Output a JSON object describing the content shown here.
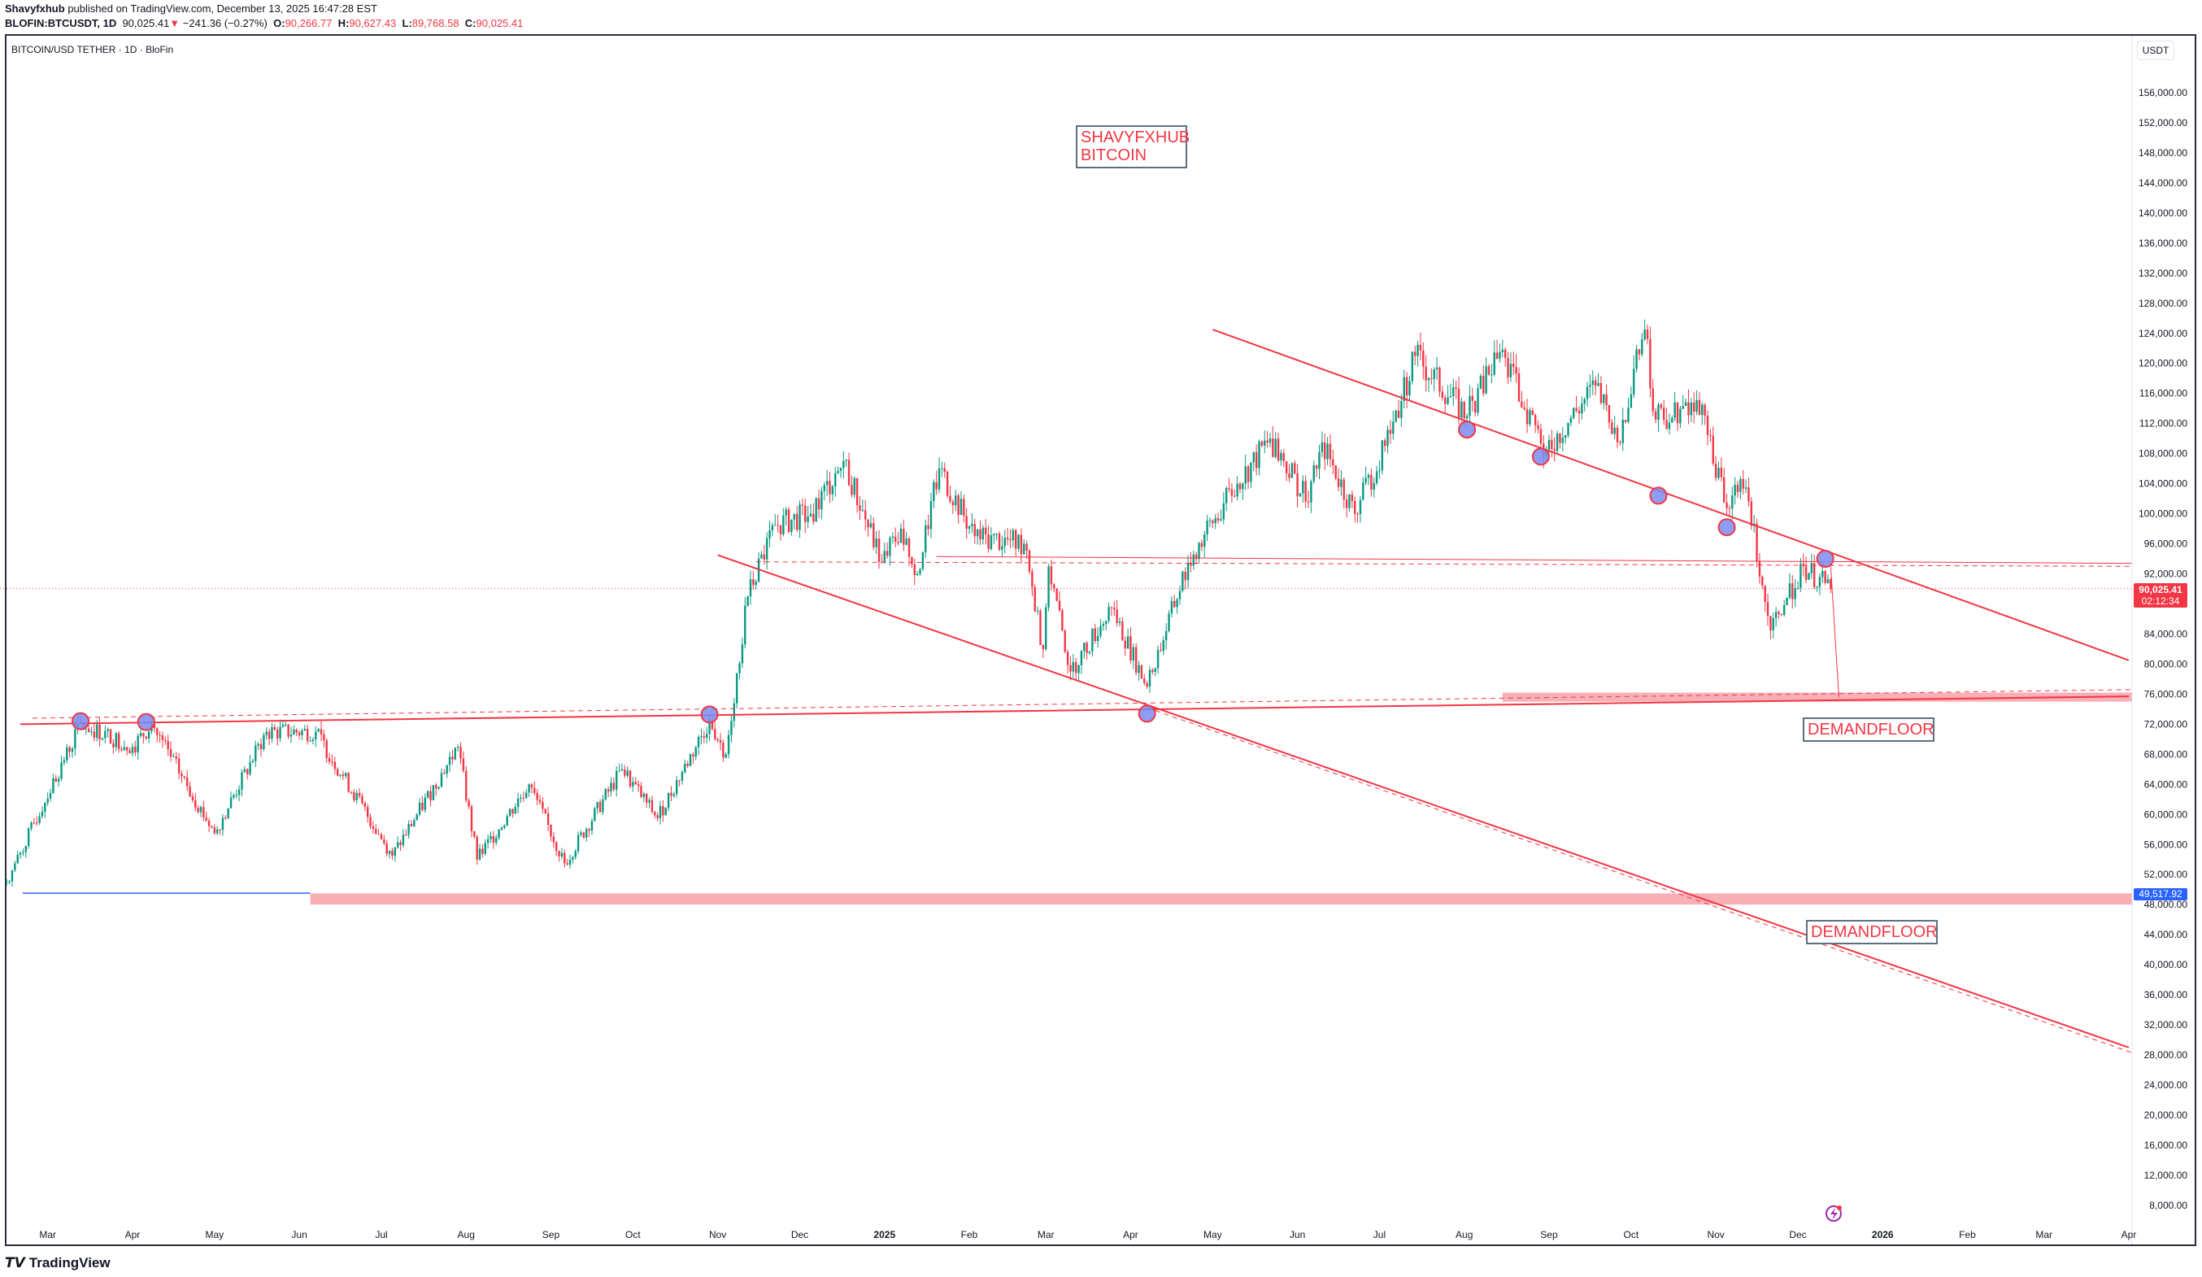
{
  "header": {
    "author": "Shavyfxhub",
    "published": "published on TradingView.com, December 13, 2025 16:47:28 EST",
    "symbol": "BLOFIN:BTCUSDT, 1D",
    "last": "90,025.41",
    "change": "−241.36 (−0.27%)",
    "o_label": "O:",
    "o": "90,266.77",
    "h_label": "H:",
    "h": "90,627.43",
    "l_label": "L:",
    "l": "89,768.58",
    "c_label": "C:",
    "c": "90,025.41"
  },
  "chart_title": "BITCOIN/USD TETHER · 1D · BloFin",
  "currency": "USDT",
  "annotations": {
    "main_line1": "SHAVYFXHUB",
    "main_line2": "BITCOIN",
    "demand1": "DEMANDFLOOR",
    "demand2": "DEMANDFLOOR"
  },
  "price_label": {
    "value": "90,025.41",
    "countdown": "02:12:34"
  },
  "blue_label": "49,517.92",
  "brand": "TradingView",
  "colors": {
    "up": "#089981",
    "down": "#f23645",
    "line": "#f23645",
    "zone": "#f7a1a9",
    "blue": "#2962ff"
  },
  "chart_data": {
    "type": "candlestick",
    "title": "BITCOIN/USD TETHER · 1D · BloFin",
    "ylabel": "USDT",
    "ylim": [
      6000,
      160000
    ],
    "y_ticks": [
      "156,000.00",
      "152,000.00",
      "148,000.00",
      "144,000.00",
      "140,000.00",
      "136,000.00",
      "132,000.00",
      "128,000.00",
      "124,000.00",
      "120,000.00",
      "116,000.00",
      "112,000.00",
      "108,000.00",
      "104,000.00",
      "100,000.00",
      "96,000.00",
      "92,000.00",
      "84,000.00",
      "80,000.00",
      "76,000.00",
      "72,000.00",
      "68,000.00",
      "64,000.00",
      "60,000.00",
      "56,000.00",
      "52,000.00",
      "48,000.00",
      "44,000.00",
      "40,000.00",
      "36,000.00",
      "32,000.00",
      "28,000.00",
      "24,000.00",
      "20,000.00",
      "16,000.00",
      "12,000.00",
      "8,000.00"
    ],
    "x_ticks": [
      "Mar",
      "Apr",
      "May",
      "Jun",
      "Jul",
      "Aug",
      "Sep",
      "Oct",
      "Nov",
      "Dec",
      "2025",
      "Feb",
      "Mar",
      "Apr",
      "May",
      "Jun",
      "Jul",
      "Aug",
      "Sep",
      "Oct",
      "Nov",
      "Dec",
      "2026",
      "Feb",
      "Mar",
      "Apr"
    ],
    "keypoints_close": [
      [
        "2024-02-15",
        51000
      ],
      [
        "2024-03-13",
        72000
      ],
      [
        "2024-04-01",
        69000
      ],
      [
        "2024-04-08",
        72000
      ],
      [
        "2024-05-01",
        57500
      ],
      [
        "2024-05-20",
        71000
      ],
      [
        "2024-06-07",
        71000
      ],
      [
        "2024-07-05",
        54500
      ],
      [
        "2024-07-29",
        69000
      ],
      [
        "2024-08-05",
        54000
      ],
      [
        "2024-08-24",
        64000
      ],
      [
        "2024-09-06",
        53500
      ],
      [
        "2024-09-27",
        66000
      ],
      [
        "2024-10-10",
        59500
      ],
      [
        "2024-10-29",
        72500
      ],
      [
        "2024-11-04",
        68000
      ],
      [
        "2024-11-12",
        89000
      ],
      [
        "2024-11-22",
        98500
      ],
      [
        "2024-12-05",
        100000
      ],
      [
        "2024-12-17",
        107000
      ],
      [
        "2024-12-31",
        93500
      ],
      [
        "2025-01-07",
        98000
      ],
      [
        "2025-01-13",
        92000
      ],
      [
        "2025-01-21",
        106000
      ],
      [
        "2025-02-03",
        97000
      ],
      [
        "2025-02-21",
        96000
      ],
      [
        "2025-02-28",
        82000
      ],
      [
        "2025-03-02",
        93000
      ],
      [
        "2025-03-10",
        79000
      ],
      [
        "2025-03-25",
        87500
      ],
      [
        "2025-04-07",
        77000
      ],
      [
        "2025-04-22",
        93500
      ],
      [
        "2025-05-10",
        104000
      ],
      [
        "2025-05-22",
        110000
      ],
      [
        "2025-06-05",
        101500
      ],
      [
        "2025-06-10",
        109500
      ],
      [
        "2025-06-22",
        100000
      ],
      [
        "2025-07-03",
        109000
      ],
      [
        "2025-07-14",
        121000
      ],
      [
        "2025-08-02",
        113000
      ],
      [
        "2025-08-14",
        121500
      ],
      [
        "2025-08-31",
        108500
      ],
      [
        "2025-09-18",
        117000
      ],
      [
        "2025-09-26",
        109500
      ],
      [
        "2025-10-06",
        124500
      ],
      [
        "2025-10-10",
        112500
      ],
      [
        "2025-10-27",
        114500
      ],
      [
        "2025-11-04",
        101500
      ],
      [
        "2025-11-12",
        103500
      ],
      [
        "2025-11-21",
        84500
      ],
      [
        "2025-12-03",
        93000
      ],
      [
        "2025-12-13",
        90025.41
      ]
    ],
    "trendlines": [
      {
        "name": "support-line",
        "from": [
          "2024-02-20",
          72000
        ],
        "to": [
          "2026-04-01",
          75700
        ]
      },
      {
        "name": "falling-line",
        "from": [
          "2024-11-01",
          94500
        ],
        "to": [
          "2026-04-01",
          29000
        ]
      },
      {
        "name": "resistance-line",
        "from": [
          "2025-05-01",
          124500
        ],
        "to": [
          "2026-04-01",
          80500
        ]
      }
    ],
    "zones": [
      {
        "name": "demand-zone-upper",
        "from": "2025-08-15",
        "to": "2026-04-01",
        "low": 75000,
        "high": 76200
      },
      {
        "name": "demand-zone-lower",
        "from": "2024-06-05",
        "to": "2026-04-01",
        "low": 48000,
        "high": 49500
      }
    ],
    "touch_points": [
      [
        "2024-03-13",
        72400
      ],
      [
        "2024-04-06",
        72300
      ],
      [
        "2024-10-29",
        73300
      ],
      [
        "2025-04-07",
        73400
      ],
      [
        "2025-08-02",
        111200
      ],
      [
        "2025-08-29",
        107600
      ],
      [
        "2025-10-11",
        102400
      ],
      [
        "2025-11-05",
        98200
      ],
      [
        "2025-12-11",
        94000
      ]
    ]
  }
}
